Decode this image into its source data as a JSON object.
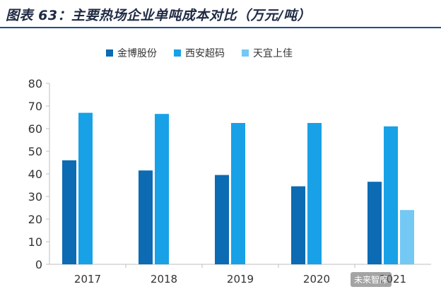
{
  "title": "图表 63：主要热场企业单吨成本对比（万元/吨）",
  "legend": [
    {
      "label": "金博股份",
      "color": "#0c6bb3"
    },
    {
      "label": "西安超码",
      "color": "#18a1e6"
    },
    {
      "label": "天宜上佳",
      "color": "#74c8f4"
    }
  ],
  "watermark": "未来智库",
  "chart_data": {
    "type": "bar",
    "categories": [
      "2017",
      "2018",
      "2019",
      "2020",
      "2021"
    ],
    "series": [
      {
        "name": "金博股份",
        "values": [
          46,
          41.5,
          39.5,
          34.5,
          36.5
        ]
      },
      {
        "name": "西安超码",
        "values": [
          67,
          66.5,
          62.5,
          62.5,
          61
        ]
      },
      {
        "name": "天宜上佳",
        "values": [
          null,
          null,
          null,
          null,
          24
        ]
      }
    ],
    "title": "",
    "xlabel": "",
    "ylabel": "",
    "ylim": [
      0,
      80
    ],
    "yticks": [
      0,
      10,
      20,
      30,
      40,
      50,
      60,
      70,
      80
    ],
    "grid": false,
    "legend_position": "top"
  }
}
